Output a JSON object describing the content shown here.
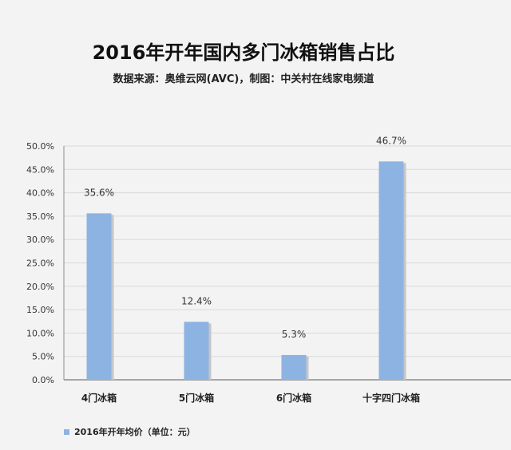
{
  "chart_data": {
    "type": "bar",
    "title": "2016年开年国内多门冰箱销售占比",
    "subtitle": "数据来源：奥维云网(AVC)，制图：中关村在线家电频道",
    "categories": [
      "4门冰箱",
      "5门冰箱",
      "6门冰箱",
      "十字四门冰箱"
    ],
    "series": [
      {
        "name": "2016年开年均价（单位：元）",
        "values": [
          35.6,
          12.4,
          5.3,
          46.7
        ]
      }
    ],
    "data_labels": [
      "35.6%",
      "12.4%",
      "5.3%",
      "46.7%"
    ],
    "yticks": [
      "0.0%",
      "5.0%",
      "10.0%",
      "15.0%",
      "20.0%",
      "25.0%",
      "30.0%",
      "35.0%",
      "40.0%",
      "45.0%",
      "50.0%"
    ],
    "ylim": [
      0,
      50
    ],
    "xlabel": "",
    "ylabel": "",
    "grid": true,
    "legend_position": "bottom-left",
    "bar_color": "#8db3e2",
    "grid_color": "#d9d9d9",
    "axis_color": "#8c8c8c"
  }
}
